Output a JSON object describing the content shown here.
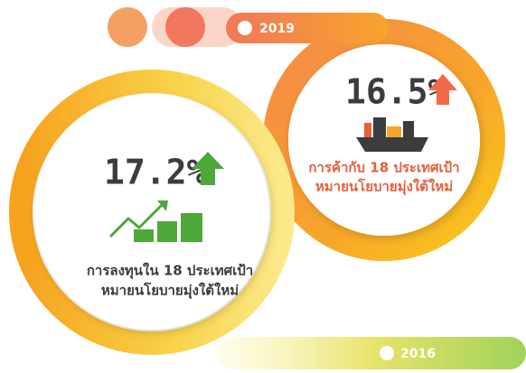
{
  "top_banner": {
    "year": "2019"
  },
  "bottom_banner": {
    "year": "2016"
  },
  "stats": [
    {
      "value": "17.2%",
      "caption": [
        "การลงทุนใน 18 ประเทศเป้า",
        "หมายนโยบายมุ่งใต้ใหม่"
      ]
    },
    {
      "value": "16.5%",
      "caption": [
        "การค้ากับ 18 ประเทศเป้า",
        "หมายนโยบายมุ่งใต้ใหม่"
      ]
    }
  ]
}
